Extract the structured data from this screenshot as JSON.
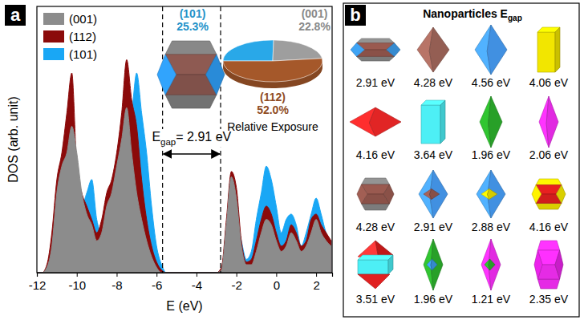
{
  "chart_data": [
    {
      "type": "area",
      "panel_label": "a",
      "x_label": "E (eV)",
      "y_label": "DOS (arb. unit)",
      "x": [
        -12,
        -11.75,
        -11.5,
        -11.25,
        -11,
        -10.75,
        -10.5,
        -10.25,
        -10,
        -9.75,
        -9.5,
        -9.25,
        -9,
        -8.75,
        -8.5,
        -8.25,
        -8,
        -7.75,
        -7.5,
        -7.25,
        -7,
        -6.75,
        -6.5,
        -6.25,
        -6,
        -5.75,
        -5.5,
        -5.25,
        -5,
        -4.75,
        -4.5,
        -4.25,
        -4,
        -3.75,
        -3.5,
        -3.25,
        -3,
        -2.75,
        -2.5,
        -2.25,
        -2,
        -1.75,
        -1.5,
        -1.25,
        -1,
        -0.75,
        -0.5,
        -0.25,
        0,
        0.25,
        0.5,
        0.75,
        1,
        1.25,
        1.5,
        1.75,
        2,
        2.25,
        2.5,
        2.75
      ],
      "series": [
        {
          "name": "(001)",
          "color": "#8c8c8c",
          "values": [
            0,
            0,
            0.02,
            0.1,
            0.3,
            0.4,
            0.45,
            0.55,
            0.45,
            0.3,
            0.22,
            0.18,
            0.12,
            0.15,
            0.25,
            0.3,
            0.4,
            0.5,
            0.62,
            0.45,
            0.3,
            0.2,
            0.12,
            0.06,
            0.02,
            0,
            0,
            0,
            0,
            0,
            0,
            0,
            0,
            0,
            0,
            0,
            0,
            0.01,
            0.18,
            0.36,
            0.28,
            0.1,
            0.03,
            0.03,
            0.08,
            0.15,
            0.2,
            0.18,
            0.12,
            0.08,
            0.1,
            0.15,
            0.12,
            0.08,
            0.1,
            0.15,
            0.2,
            0.15,
            0.12,
            0.1
          ]
        },
        {
          "name": "(112)",
          "color": "#8b0a0a",
          "values": [
            0,
            0,
            0.03,
            0.15,
            0.35,
            0.45,
            0.6,
            0.75,
            0.4,
            0.3,
            0.25,
            0.2,
            0.15,
            0.2,
            0.3,
            0.35,
            0.45,
            0.6,
            0.8,
            0.65,
            0.55,
            0.35,
            0.2,
            0.1,
            0.04,
            0.01,
            0,
            0,
            0,
            0,
            0,
            0,
            0,
            0,
            0,
            0,
            0,
            0.02,
            0.2,
            0.38,
            0.32,
            0.12,
            0.04,
            0.05,
            0.12,
            0.2,
            0.25,
            0.22,
            0.15,
            0.1,
            0.12,
            0.18,
            0.15,
            0.1,
            0.12,
            0.2,
            0.22,
            0.18,
            0.15,
            0.12
          ]
        },
        {
          "name": "(101)",
          "color": "#19a7f5",
          "values": [
            0,
            0,
            0.01,
            0.05,
            0.1,
            0.2,
            0.3,
            0.35,
            0.3,
            0.25,
            0.3,
            0.35,
            0.2,
            0.15,
            0.2,
            0.3,
            0.4,
            0.45,
            0.55,
            0.6,
            0.75,
            0.6,
            0.45,
            0.25,
            0.1,
            0.03,
            0,
            0,
            0,
            0,
            0,
            0,
            0,
            0,
            0,
            0,
            0,
            0.01,
            0.05,
            0.15,
            0.2,
            0.12,
            0.05,
            0.08,
            0.2,
            0.3,
            0.4,
            0.35,
            0.25,
            0.15,
            0.2,
            0.22,
            0.18,
            0.1,
            0.15,
            0.22,
            0.28,
            0.22,
            0.15,
            0.12
          ]
        }
      ],
      "xlim": [
        -12,
        2.8
      ],
      "xticks": [
        -12,
        -10,
        -8,
        -6,
        -4,
        -2,
        0,
        2
      ],
      "ylim": [
        0,
        1
      ],
      "tick_labels": "x",
      "legend": "upper left",
      "gap_lines": [
        -5.7,
        -2.79
      ],
      "annotation": "Egap= 2.91 eV"
    },
    {
      "type": "pie",
      "title": "Relative Exposure",
      "categories": [
        "(101)",
        "(001)",
        "(112)"
      ],
      "values": [
        25.3,
        22.8,
        52.0
      ],
      "value_labels": [
        "25.3%",
        "22.8%",
        "52.0%"
      ],
      "colors": [
        "#29a8e8",
        "#9e9e9e",
        "#a5582a"
      ],
      "data_labels": true
    }
  ],
  "panel_b": {
    "label": "b",
    "title": "Nanoparticles Egap",
    "gaps": [
      "2.91 eV",
      "4.28 eV",
      "4.56 eV",
      "4.06 eV",
      "4.16 eV",
      "3.64 eV",
      "1.96 eV",
      "2.06 eV",
      "4.28 eV",
      "2.91 eV",
      "2.88 eV",
      "4.16 eV",
      "3.51 eV",
      "1.96 eV",
      "1.21 eV",
      "2.35 eV"
    ]
  }
}
